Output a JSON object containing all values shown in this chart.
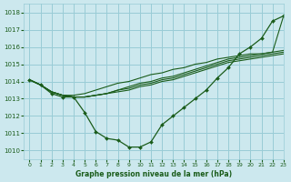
{
  "title": "Graphe pression niveau de la mer (hPa)",
  "bg_color": "#cce8ee",
  "grid_color": "#99ccd6",
  "line_color": "#1a5c1a",
  "xlim": [
    -0.5,
    23
  ],
  "ylim": [
    1009.5,
    1018.5
  ],
  "yticks": [
    1010,
    1011,
    1012,
    1013,
    1014,
    1015,
    1016,
    1017,
    1018
  ],
  "xticks": [
    0,
    1,
    2,
    3,
    4,
    5,
    6,
    7,
    8,
    9,
    10,
    11,
    12,
    13,
    14,
    15,
    16,
    17,
    18,
    19,
    20,
    21,
    22,
    23
  ],
  "series_main": [
    1014.1,
    1013.8,
    1013.3,
    1013.1,
    1013.1,
    1012.2,
    1011.1,
    1010.7,
    1010.6,
    1010.2,
    1010.2,
    1010.5,
    1011.5,
    1012.0,
    1012.5,
    1013.0,
    1013.5,
    1014.2,
    1014.8,
    1015.6,
    1016.0,
    1016.5,
    1017.5,
    1017.8
  ],
  "series_linear": [
    [
      1014.1,
      1013.8,
      1013.4,
      1013.2,
      1013.1,
      1013.1,
      1013.2,
      1013.3,
      1013.4,
      1013.5,
      1013.7,
      1013.8,
      1014.0,
      1014.1,
      1014.3,
      1014.5,
      1014.7,
      1014.9,
      1015.1,
      1015.2,
      1015.3,
      1015.4,
      1015.5,
      1015.6
    ],
    [
      1014.1,
      1013.8,
      1013.4,
      1013.2,
      1013.1,
      1013.1,
      1013.2,
      1013.3,
      1013.5,
      1013.6,
      1013.8,
      1013.9,
      1014.1,
      1014.2,
      1014.4,
      1014.6,
      1014.8,
      1015.0,
      1015.2,
      1015.3,
      1015.4,
      1015.5,
      1015.6,
      1015.7
    ],
    [
      1014.1,
      1013.8,
      1013.4,
      1013.2,
      1013.1,
      1013.1,
      1013.2,
      1013.3,
      1013.5,
      1013.7,
      1013.9,
      1014.0,
      1014.2,
      1014.3,
      1014.5,
      1014.7,
      1014.9,
      1015.1,
      1015.3,
      1015.4,
      1015.5,
      1015.6,
      1015.7,
      1015.8
    ],
    [
      1014.1,
      1013.8,
      1013.4,
      1013.2,
      1013.2,
      1013.3,
      1013.5,
      1013.7,
      1013.9,
      1014.0,
      1014.2,
      1014.4,
      1014.5,
      1014.7,
      1014.8,
      1015.0,
      1015.1,
      1015.3,
      1015.4,
      1015.5,
      1015.6,
      1015.6,
      1015.7,
      1017.8
    ]
  ]
}
